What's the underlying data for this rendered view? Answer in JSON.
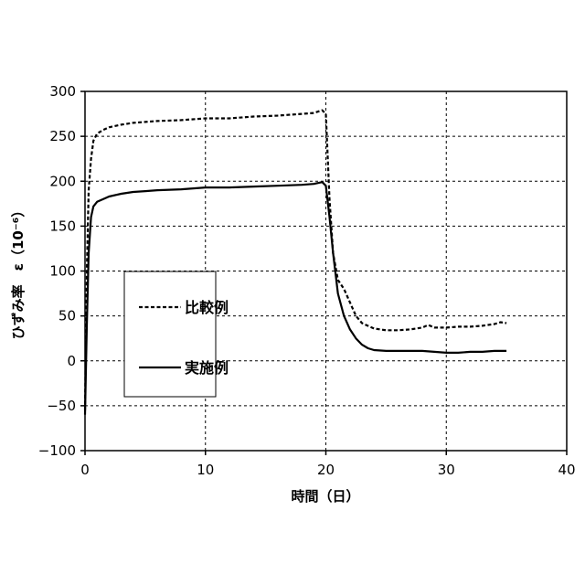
{
  "chart_data": {
    "type": "line",
    "xlabel": "時間（日）",
    "ylabel": "ひずみ率　ε（10⁻⁶）",
    "xlim": [
      0,
      40
    ],
    "ylim": [
      -100,
      300
    ],
    "xticks": [
      0,
      10,
      20,
      30,
      40
    ],
    "yticks": [
      -100,
      -50,
      0,
      50,
      100,
      150,
      200,
      250,
      300
    ],
    "grid": true,
    "legend_position": "center-left",
    "series": [
      {
        "name": "比較例",
        "style": "dashed",
        "color": "#000000",
        "x": [
          0,
          0.15,
          0.3,
          0.5,
          0.7,
          1,
          1.5,
          2,
          3,
          4,
          5,
          6,
          8,
          10,
          12,
          14,
          16,
          18,
          19,
          19.7,
          20,
          20.3,
          20.6,
          21,
          21.5,
          22,
          22.5,
          23,
          24,
          25,
          26,
          27,
          28,
          28.5,
          29,
          30,
          31,
          32,
          33,
          34,
          34.5,
          35
        ],
        "y": [
          -55,
          100,
          190,
          225,
          245,
          253,
          257,
          260,
          263,
          265,
          266,
          267,
          268,
          270,
          270,
          272,
          273,
          275,
          276,
          279,
          275,
          180,
          120,
          90,
          80,
          65,
          50,
          42,
          36,
          34,
          34,
          35,
          37,
          40,
          37,
          37,
          38,
          38,
          39,
          41,
          43,
          42
        ]
      },
      {
        "name": "実施例",
        "style": "solid",
        "color": "#000000",
        "x": [
          0,
          0.15,
          0.3,
          0.5,
          0.7,
          1,
          1.5,
          2,
          3,
          4,
          5,
          6,
          8,
          10,
          12,
          14,
          16,
          18,
          19,
          19.7,
          20,
          20.3,
          20.6,
          21,
          21.5,
          22,
          22.5,
          23,
          23.5,
          24,
          25,
          26,
          27,
          28,
          29,
          30,
          31,
          32,
          33,
          34,
          35
        ],
        "y": [
          -60,
          40,
          120,
          160,
          172,
          177,
          180,
          183,
          186,
          188,
          189,
          190,
          191,
          193,
          193,
          194,
          195,
          196,
          197,
          199,
          195,
          160,
          120,
          75,
          50,
          35,
          25,
          18,
          14,
          12,
          11,
          11,
          11,
          11,
          10,
          9,
          9,
          10,
          10,
          11,
          11
        ]
      }
    ]
  }
}
